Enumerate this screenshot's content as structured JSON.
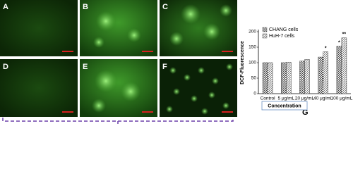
{
  "panels": [
    "A",
    "B",
    "C",
    "D",
    "E",
    "F"
  ],
  "figure_label": "G",
  "chart_data": {
    "type": "bar",
    "ylabel": "DCF-Fluorescence",
    "xlabel": "Concentration",
    "categories": [
      "Control",
      "5 μg/mL",
      "20 μg/mL",
      "40 μg/mL",
      "100 μg/mL"
    ],
    "series": [
      {
        "name": "CHANG cells",
        "color": "#444444",
        "pattern": "crosshatch",
        "values": [
          100,
          100,
          105,
          118,
          153
        ],
        "significance": [
          null,
          null,
          null,
          null,
          "*"
        ]
      },
      {
        "name": "HuH-7 cells",
        "color": "#666666",
        "pattern": "diagonal",
        "values": [
          100,
          101,
          110,
          135,
          180
        ],
        "significance": [
          null,
          null,
          null,
          "*",
          "**"
        ]
      }
    ],
    "ylim": [
      0,
      200
    ],
    "yticks": [
      0,
      50,
      100,
      150,
      200
    ],
    "legend": "upper left"
  }
}
